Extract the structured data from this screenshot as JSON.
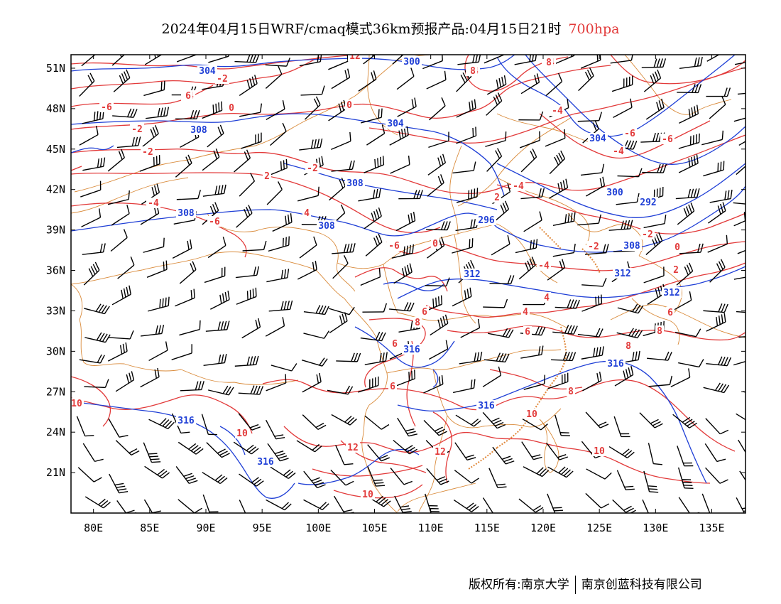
{
  "title": {
    "main": "2024年04月15日WRF/cmaq模式36km预报产品:04月15日21时",
    "level": "700hpa",
    "level_color": "#e23a3a"
  },
  "colors": {
    "temperature": "#e23a3a",
    "geopotential": "#1f3fd6",
    "boundary": "#d98a3a",
    "wind": "#000000",
    "frame": "#000000"
  },
  "axes": {
    "lon_ticks": [
      "80E",
      "85E",
      "90E",
      "95E",
      "100E",
      "105E",
      "110E",
      "115E",
      "120E",
      "125E",
      "130E",
      "135E"
    ],
    "lat_ticks": [
      "51N",
      "48N",
      "45N",
      "42N",
      "39N",
      "36N",
      "33N",
      "30N",
      "27N",
      "24N",
      "21N"
    ],
    "lon_values": [
      80,
      85,
      90,
      95,
      100,
      105,
      110,
      115,
      120,
      125,
      130,
      135
    ],
    "lat_values": [
      51,
      48,
      45,
      42,
      39,
      36,
      33,
      30,
      27,
      24,
      21
    ],
    "lon_range": [
      78,
      138
    ],
    "lat_range": [
      18,
      52
    ]
  },
  "geopotential_labels": [
    "300",
    "304",
    "304",
    "308",
    "308",
    "308",
    "308",
    "296",
    "300",
    "292",
    "304",
    "308",
    "312",
    "312",
    "312",
    "316",
    "316",
    "316",
    "316",
    "316"
  ],
  "temperature_labels": [
    "-2",
    "-4",
    "-4",
    "-4",
    "-6",
    "-2",
    "0",
    "0",
    "-2",
    "-4",
    "-6",
    "-6",
    "-4",
    "-2",
    "-2",
    "2",
    "2",
    "-4",
    "-4",
    "-6",
    "4",
    "-6",
    "0",
    "-2",
    "-2",
    "0",
    "-4",
    "2",
    "4",
    "4",
    "6",
    "6",
    "8",
    "8",
    "6",
    "8",
    "6",
    "6",
    "8",
    "10",
    "10",
    "10",
    "10",
    "12",
    "12",
    "10",
    "12",
    "8",
    "6",
    "8"
  ],
  "credit": {
    "left": "版权所有:南京大学",
    "right": "南京创蓝科技有限公司"
  }
}
